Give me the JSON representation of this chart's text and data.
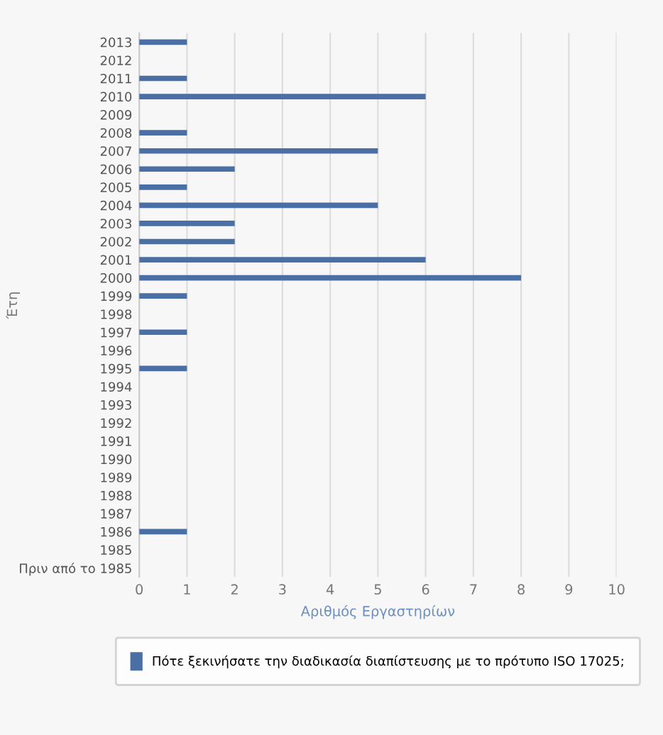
{
  "chart_data": {
    "type": "bar",
    "orientation": "horizontal",
    "ylabel": "Έτη",
    "xlabel": "Αριθμός Εργαστηρίων",
    "categories": [
      "2013",
      "2012",
      "2011",
      "2010",
      "2009",
      "2008",
      "2007",
      "2006",
      "2005",
      "2004",
      "2003",
      "2002",
      "2001",
      "2000",
      "1999",
      "1998",
      "1997",
      "1996",
      "1995",
      "1994",
      "1993",
      "1992",
      "1991",
      "1990",
      "1989",
      "1988",
      "1987",
      "1986",
      "1985",
      "Πριν από το 1985"
    ],
    "series": [
      {
        "name": "Πότε ξεκινήσατε την διαδικασία διαπίστευσης με το πρότυπο ISO 17025;",
        "color": "#4a6fa5",
        "values": [
          1,
          0,
          1,
          6,
          0,
          1,
          5,
          2,
          1,
          5,
          2,
          2,
          6,
          8,
          1,
          0,
          1,
          0,
          1,
          0,
          0,
          0,
          0,
          0,
          0,
          0,
          0,
          1,
          0,
          0
        ]
      }
    ],
    "xlim": [
      0,
      10
    ],
    "xticks": [
      0,
      1,
      2,
      3,
      4,
      5,
      6,
      7,
      8,
      9,
      10
    ],
    "grid": "x",
    "legend": "bottom"
  }
}
